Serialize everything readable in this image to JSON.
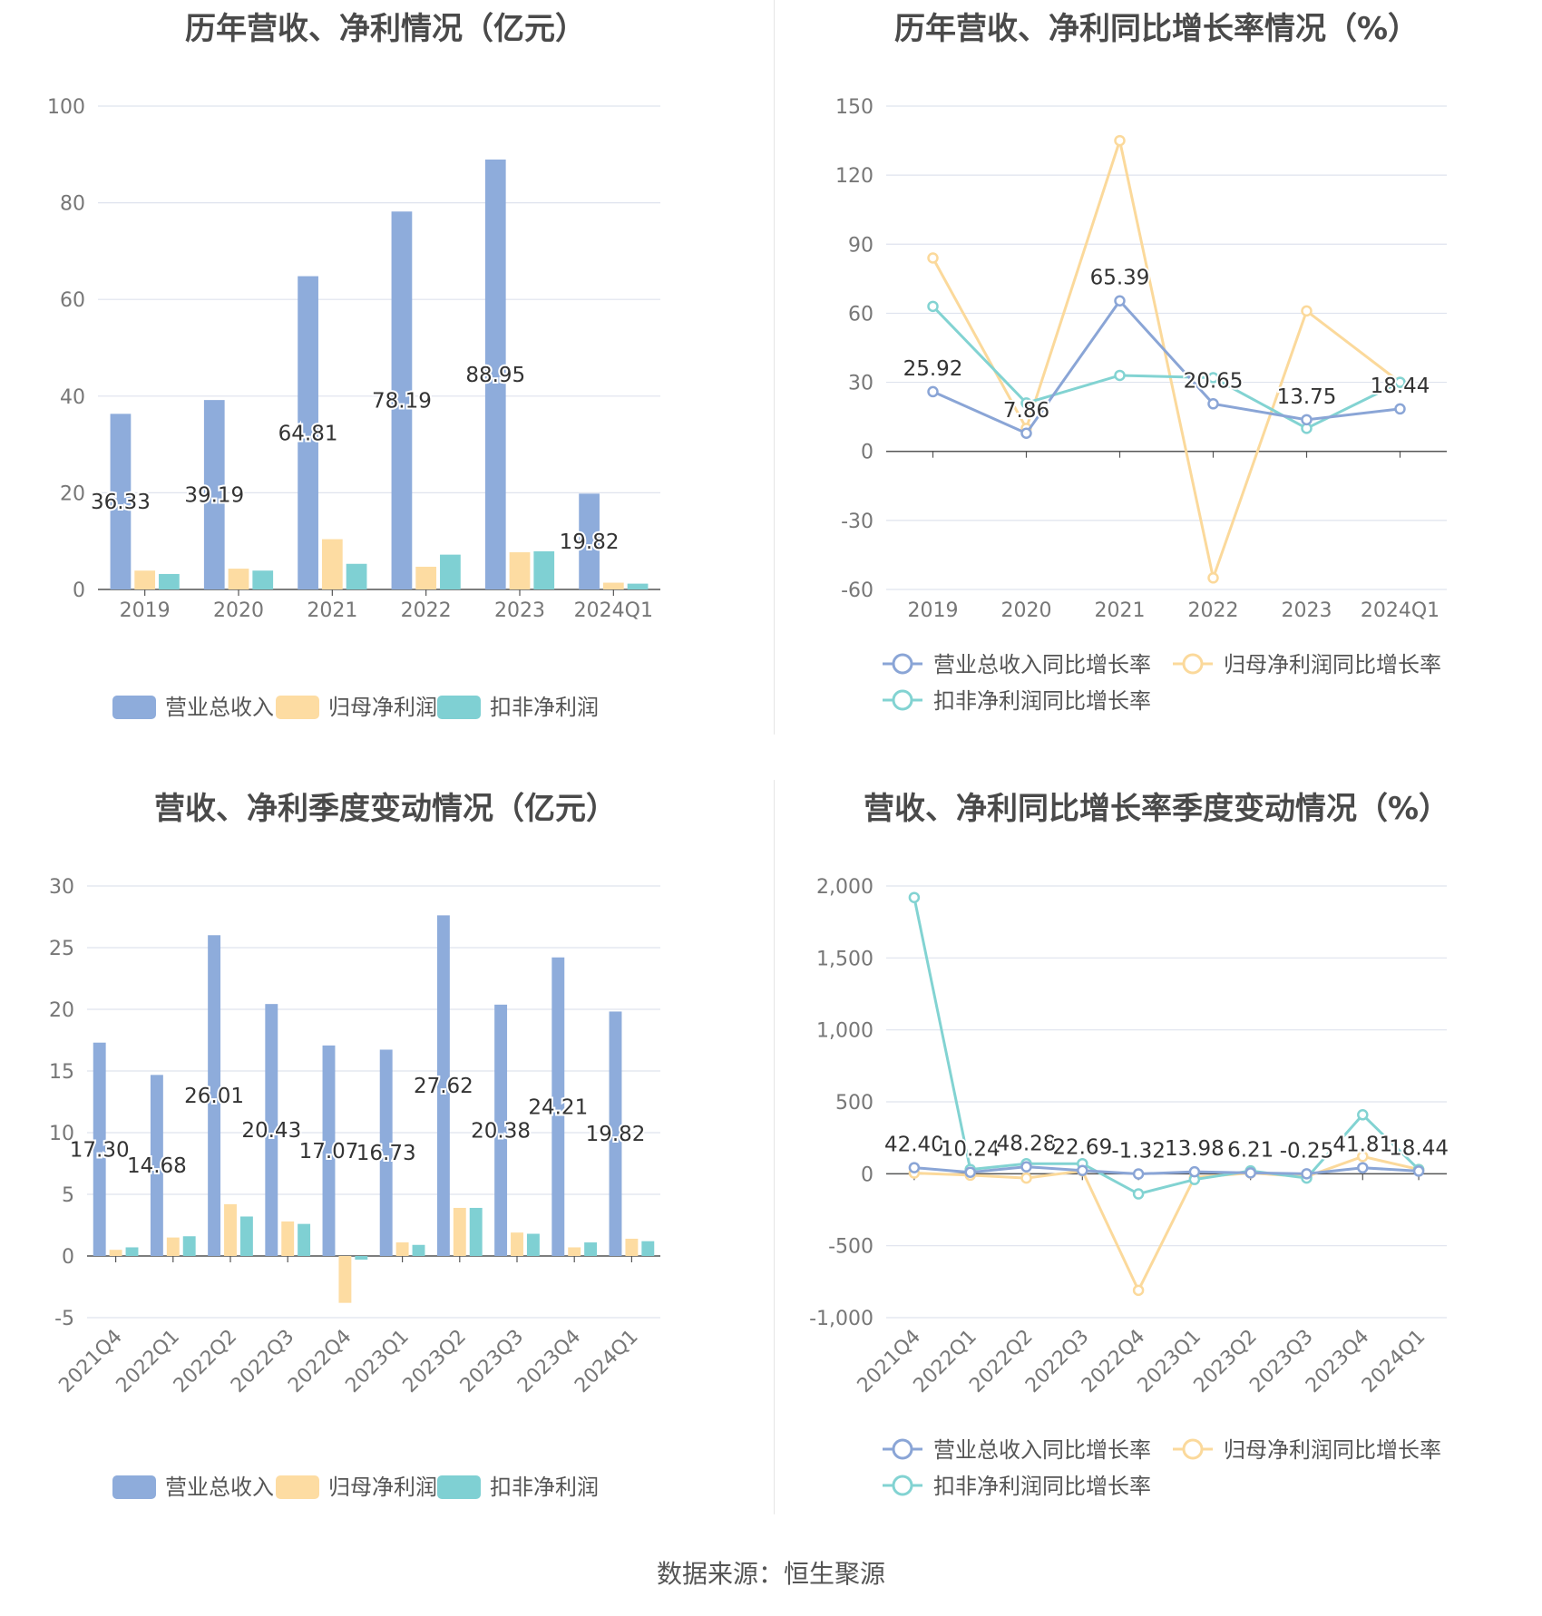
{
  "source": "数据来源：恒生聚源",
  "colors": {
    "revenue": "#8eacdb",
    "net_profit": "#fddca2",
    "deducted": "#7fd0d3",
    "revenue_line": "#8aa5d6",
    "net_line": "#fbd99b",
    "deducted_line": "#82d3d2",
    "grid": "#dfe3ee",
    "axis": "#555555"
  },
  "chart_data": [
    {
      "type": "bar",
      "title": "历年营收、净利情况（亿元）",
      "categories": [
        "2019",
        "2020",
        "2021",
        "2022",
        "2023",
        "2024Q1"
      ],
      "series": [
        {
          "name": "营业总收入",
          "values": [
            36.33,
            39.19,
            64.81,
            78.19,
            88.95,
            19.82
          ],
          "labels": [
            "36.33",
            "39.19",
            "64.81",
            "78.19",
            "88.95",
            "19.82"
          ]
        },
        {
          "name": "归母净利润",
          "values": [
            3.9,
            4.3,
            10.4,
            4.7,
            7.7,
            1.4
          ]
        },
        {
          "name": "扣非净利润",
          "values": [
            3.2,
            3.9,
            5.3,
            7.2,
            7.9,
            1.2
          ]
        }
      ],
      "ylim": [
        0,
        100
      ],
      "yticks": [
        "0",
        "20",
        "40",
        "60",
        "80",
        "100"
      ],
      "grid": true,
      "legend": "bottom"
    },
    {
      "type": "line",
      "title": "历年营收、净利同比增长率情况（%）",
      "categories": [
        "2019",
        "2020",
        "2021",
        "2022",
        "2023",
        "2024Q1"
      ],
      "series": [
        {
          "name": "营业总收入同比增长率",
          "values": [
            25.92,
            7.86,
            65.39,
            20.65,
            13.75,
            18.44
          ],
          "labels": [
            "25.92",
            "7.86",
            "65.39",
            "20.65",
            "13.75",
            "18.44"
          ]
        },
        {
          "name": "归母净利润同比增长率",
          "values": [
            84,
            10,
            135,
            -55,
            61,
            30
          ]
        },
        {
          "name": "扣非净利润同比增长率",
          "values": [
            63,
            21,
            33,
            32,
            10,
            30
          ]
        }
      ],
      "ylim": [
        -60,
        150
      ],
      "yticks": [
        "-60",
        "-30",
        "0",
        "30",
        "60",
        "90",
        "120",
        "150"
      ],
      "grid": true,
      "legend": "bottom"
    },
    {
      "type": "bar",
      "title": "营收、净利季度变动情况（亿元）",
      "categories": [
        "2021Q4",
        "2022Q1",
        "2022Q2",
        "2022Q3",
        "2022Q4",
        "2023Q1",
        "2023Q2",
        "2023Q3",
        "2023Q4",
        "2024Q1"
      ],
      "series": [
        {
          "name": "营业总收入",
          "values": [
            17.3,
            14.68,
            26.01,
            20.43,
            17.07,
            16.73,
            27.62,
            20.38,
            24.21,
            19.82
          ],
          "labels": [
            "17.30",
            "14.68",
            "26.01",
            "20.43",
            "17.07",
            "16.73",
            "27.62",
            "20.38",
            "24.21",
            "19.82"
          ]
        },
        {
          "name": "归母净利润",
          "values": [
            0.5,
            1.5,
            4.2,
            2.8,
            -3.8,
            1.1,
            3.9,
            1.9,
            0.7,
            1.4
          ]
        },
        {
          "name": "扣非净利润",
          "values": [
            0.7,
            1.6,
            3.2,
            2.6,
            -0.3,
            0.9,
            3.9,
            1.8,
            1.1,
            1.2
          ]
        }
      ],
      "ylim": [
        -5,
        30
      ],
      "yticks": [
        "-5",
        "0",
        "5",
        "10",
        "15",
        "20",
        "25",
        "30"
      ],
      "grid": true,
      "legend": "bottom"
    },
    {
      "type": "line",
      "title": "营收、净利同比增长率季度变动情况（%）",
      "categories": [
        "2021Q4",
        "2022Q1",
        "2022Q2",
        "2022Q3",
        "2022Q4",
        "2023Q1",
        "2023Q2",
        "2023Q3",
        "2023Q4",
        "2024Q1"
      ],
      "series": [
        {
          "name": "营业总收入同比增长率",
          "values": [
            42.4,
            10.24,
            48.28,
            22.69,
            -1.32,
            13.98,
            6.21,
            -0.25,
            41.81,
            18.44
          ],
          "labels": [
            "42.40",
            "10.24",
            "48.28",
            "22.69",
            "-1.32",
            "13.98",
            "6.21",
            "-0.25",
            "41.81",
            "18.44"
          ]
        },
        {
          "name": "归母净利润同比增长率",
          "values": [
            5,
            -10,
            -30,
            20,
            -810,
            -25,
            5,
            -20,
            120,
            30
          ]
        },
        {
          "name": "扣非净利润同比增长率",
          "values": [
            1920,
            30,
            70,
            70,
            -140,
            -40,
            20,
            -30,
            410,
            30
          ]
        }
      ],
      "ylim": [
        -1000,
        2000
      ],
      "yticks": [
        "-1,000",
        "-500",
        "0",
        "500",
        "1,000",
        "1,500",
        "2,000"
      ],
      "grid": true,
      "legend": "bottom"
    }
  ]
}
